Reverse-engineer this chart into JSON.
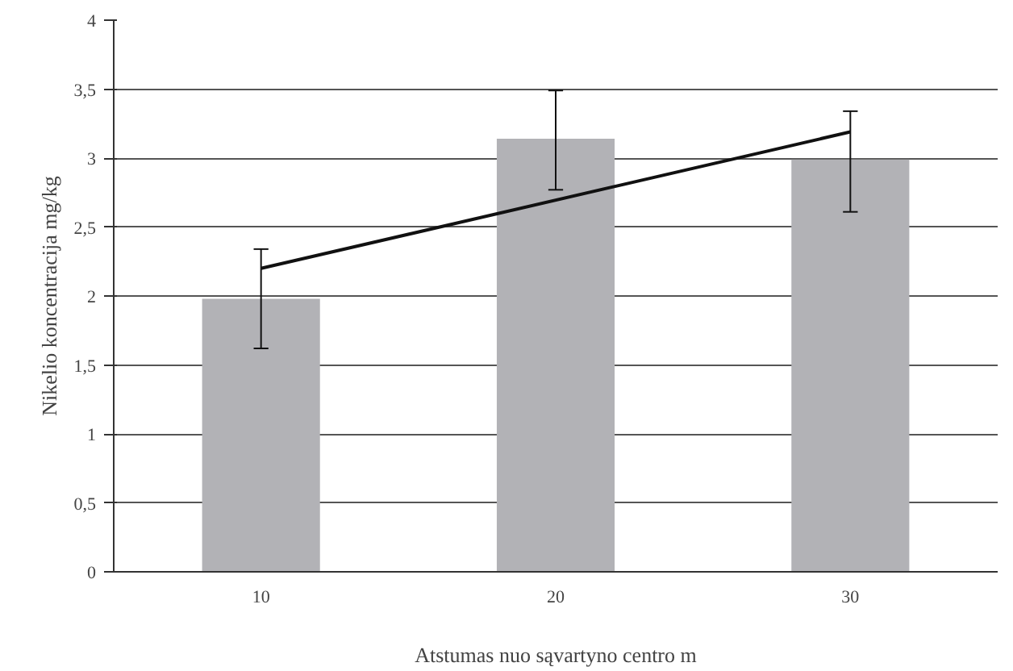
{
  "chart_data": {
    "type": "bar",
    "xlabel": "Atstumas nuo sąvartyno centro m",
    "ylabel": "Nikelio koncentracija mg/kg",
    "categories": [
      "10",
      "20",
      "30"
    ],
    "series": [
      {
        "color": "#b2b2b6",
        "values": [
          1.98,
          3.14,
          2.99
        ],
        "errors": [
          [
            1.62,
            2.34
          ],
          [
            2.77,
            3.49
          ],
          [
            2.61,
            3.34
          ]
        ]
      },
      {
        "type": "line",
        "color": "#111111",
        "x": [
          "10",
          "30"
        ],
        "values": [
          2.2,
          3.19
        ]
      }
    ],
    "ylim": [
      0,
      4
    ],
    "yticks": [
      0,
      {
        "value": 0.5,
        "label": "0,5"
      },
      1,
      {
        "value": 1.5,
        "label": "1,5"
      },
      2,
      {
        "value": 2.5,
        "label": "2,5"
      },
      3,
      {
        "value": 3.5,
        "label": "3,5"
      },
      4
    ],
    "grid": "y"
  }
}
